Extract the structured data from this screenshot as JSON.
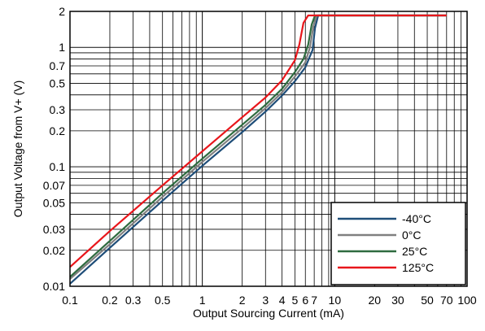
{
  "chart_data": {
    "type": "line",
    "xlabel": "Output Sourcing Current (mA)",
    "ylabel": "Output Voltage from V+ (V)",
    "x_scale": "log",
    "y_scale": "log",
    "xlim": [
      0.1,
      100
    ],
    "ylim": [
      0.01,
      2
    ],
    "grid": true,
    "legend_position": "bottom-right",
    "x_ticks": [
      {
        "value": 0.1,
        "label": "0.1"
      },
      {
        "value": 0.2,
        "label": "0.2"
      },
      {
        "value": 0.3,
        "label": "0.3"
      },
      {
        "value": 0.5,
        "label": "0.5"
      },
      {
        "value": 1,
        "label": "1"
      },
      {
        "value": 2,
        "label": "2"
      },
      {
        "value": 3,
        "label": "3"
      },
      {
        "value": 4,
        "label": "4"
      },
      {
        "value": 5,
        "label": "5"
      },
      {
        "value": 6,
        "label": "6"
      },
      {
        "value": 7,
        "label": "7"
      },
      {
        "value": 10,
        "label": "10"
      },
      {
        "value": 20,
        "label": "20"
      },
      {
        "value": 30,
        "label": "30"
      },
      {
        "value": 50,
        "label": "50"
      },
      {
        "value": 70,
        "label": "70"
      },
      {
        "value": 100,
        "label": "100"
      }
    ],
    "y_ticks": [
      {
        "value": 0.01,
        "label": "0.01"
      },
      {
        "value": 0.02,
        "label": "0.02"
      },
      {
        "value": 0.03,
        "label": "0.03"
      },
      {
        "value": 0.05,
        "label": "0.05"
      },
      {
        "value": 0.07,
        "label": "0.07"
      },
      {
        "value": 0.1,
        "label": "0.1"
      },
      {
        "value": 0.2,
        "label": "0.2"
      },
      {
        "value": 0.3,
        "label": "0.3"
      },
      {
        "value": 0.5,
        "label": "0.5"
      },
      {
        "value": 0.7,
        "label": "0.7"
      },
      {
        "value": 1,
        "label": "1"
      },
      {
        "value": 2,
        "label": "2"
      }
    ],
    "series": [
      {
        "name": "-40°C",
        "color": "#1f4e79",
        "x": [
          0.1,
          0.2,
          0.5,
          1,
          2,
          3,
          4,
          5,
          6,
          6.8,
          7.1,
          7.5,
          70
        ],
        "y": [
          0.0105,
          0.021,
          0.052,
          0.102,
          0.195,
          0.29,
          0.395,
          0.52,
          0.68,
          0.95,
          1.45,
          1.85,
          1.85
        ]
      },
      {
        "name": "0°C",
        "color": "#808080",
        "x": [
          0.1,
          0.2,
          0.5,
          1,
          2,
          3,
          4,
          5,
          6,
          6.5,
          6.9,
          7.3,
          70
        ],
        "y": [
          0.0115,
          0.0225,
          0.056,
          0.11,
          0.21,
          0.31,
          0.42,
          0.57,
          0.75,
          1.0,
          1.5,
          1.85,
          1.85
        ]
      },
      {
        "name": "25°C",
        "color": "#2e6b3f",
        "x": [
          0.1,
          0.2,
          0.5,
          1,
          2,
          3,
          4,
          5,
          5.8,
          6.3,
          6.7,
          7.1,
          70
        ],
        "y": [
          0.012,
          0.024,
          0.06,
          0.117,
          0.225,
          0.33,
          0.45,
          0.62,
          0.8,
          1.05,
          1.55,
          1.85,
          1.85
        ]
      },
      {
        "name": "125°C",
        "color": "#e8161b",
        "x": [
          0.1,
          0.2,
          0.5,
          1,
          2,
          3,
          4,
          5,
          5.4,
          5.8,
          6.3,
          70
        ],
        "y": [
          0.0145,
          0.029,
          0.07,
          0.135,
          0.26,
          0.38,
          0.53,
          0.78,
          1.05,
          1.6,
          1.85,
          1.85
        ]
      }
    ]
  }
}
